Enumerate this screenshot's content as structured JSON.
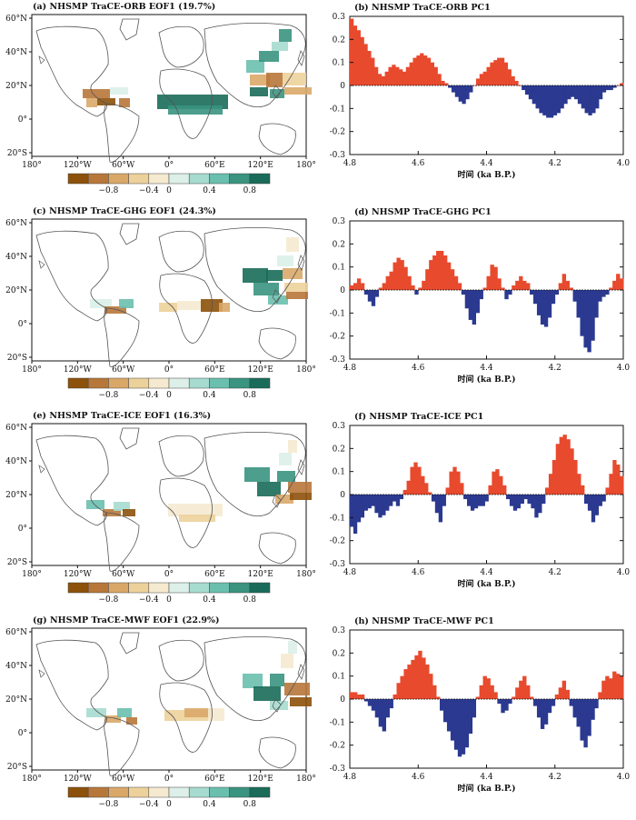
{
  "maps": [
    {
      "title": "(a) NHSMP TraCE-ORB EOF1 (19.7%)"
    },
    {
      "title": "(c) NHSMP TraCE-GHG EOF1 (24.3%)"
    },
    {
      "title": "(e) NHSMP TraCE-ICE EOF1 (16.3%)"
    },
    {
      "title": "(g) NHSMP TraCE-MWF EOF1 (22.9%)"
    }
  ],
  "map_axes": {
    "lat_labels": [
      "60°N",
      "40°N",
      "20°N",
      "0°",
      "20°S"
    ],
    "lon_labels": [
      "180°",
      "120°W",
      "60°W",
      "0°",
      "60°E",
      "120°E",
      "180°"
    ]
  },
  "colorbar": {
    "tick_labels": [
      "−0.8",
      "−0.4",
      "0",
      "0.4",
      "0.8"
    ],
    "colors": [
      "#8c510a",
      "#b8773a",
      "#d9a868",
      "#edd19b",
      "#f5ead0",
      "#dcefe9",
      "#a6dbcf",
      "#6abfae",
      "#3a947f",
      "#1a6b59"
    ]
  },
  "colors": {
    "positive": "#e84a2e",
    "negative": "#2b3990",
    "ocean": "#ffffff",
    "coast": "#555555"
  },
  "chart_data": [
    {
      "type": "bar",
      "title": "(b) NHSMP TraCE-ORB PC1",
      "xlabel": "时间 (ka B.P.)",
      "xlim": [
        4.8,
        4.0
      ],
      "ylim": [
        -0.3,
        0.3
      ],
      "xticks": [
        "4.8",
        "4.6",
        "4.4",
        "4.2",
        "4.0"
      ],
      "yticks": [
        "0.3",
        "0.2",
        "0.1",
        "0",
        "-0.1",
        "-0.2",
        "-0.3"
      ],
      "values": [
        0.29,
        0.26,
        0.24,
        0.21,
        0.18,
        0.15,
        0.12,
        0.08,
        0.05,
        0.04,
        0.06,
        0.08,
        0.09,
        0.08,
        0.07,
        0.06,
        0.08,
        0.1,
        0.12,
        0.13,
        0.14,
        0.13,
        0.12,
        0.1,
        0.08,
        0.05,
        0.02,
        0.01,
        -0.01,
        -0.03,
        -0.05,
        -0.07,
        -0.08,
        -0.06,
        -0.03,
        0,
        0.03,
        0.05,
        0.06,
        0.08,
        0.1,
        0.11,
        0.12,
        0.12,
        0.1,
        0.07,
        0.04,
        0.02,
        0,
        -0.02,
        -0.04,
        -0.06,
        -0.08,
        -0.1,
        -0.12,
        -0.13,
        -0.14,
        -0.14,
        -0.13,
        -0.12,
        -0.1,
        -0.08,
        -0.06,
        -0.05,
        -0.06,
        -0.08,
        -0.1,
        -0.12,
        -0.13,
        -0.12,
        -0.1,
        -0.06,
        -0.03,
        -0.02,
        -0.02,
        -0.01,
        0,
        0.01
      ]
    },
    {
      "type": "bar",
      "title": "(d) NHSMP TraCE-GHG PC1",
      "xlabel": "时间 (ka B.P.)",
      "xlim": [
        4.8,
        4.0
      ],
      "ylim": [
        -0.3,
        0.3
      ],
      "xticks": [
        "4.8",
        "4.6",
        "4.4",
        "4.2",
        "4.0"
      ],
      "yticks": [
        "0.3",
        "0.2",
        "0.1",
        "0",
        "-0.1",
        "-0.2",
        "-0.3"
      ],
      "values": [
        0.02,
        0.03,
        0.05,
        0.03,
        -0.02,
        -0.05,
        -0.07,
        -0.03,
        0.01,
        0.03,
        0.06,
        0.08,
        0.12,
        0.14,
        0.13,
        0.1,
        0.06,
        0.02,
        -0.02,
        0.01,
        0.04,
        0.09,
        0.13,
        0.15,
        0.17,
        0.17,
        0.15,
        0.12,
        0.09,
        0.06,
        0.03,
        -0.02,
        -0.08,
        -0.13,
        -0.15,
        -0.1,
        -0.04,
        0.01,
        0.06,
        0.11,
        0.1,
        0.05,
        0.01,
        -0.04,
        -0.02,
        0.02,
        0.04,
        0.06,
        0.04,
        0.03,
        -0.02,
        -0.06,
        -0.11,
        -0.15,
        -0.16,
        -0.12,
        -0.06,
        -0.02,
        0.03,
        0.07,
        0.04,
        0.01,
        -0.05,
        -0.12,
        -0.2,
        -0.25,
        -0.27,
        -0.22,
        -0.12,
        -0.05,
        -0.03,
        -0.02,
        0.01,
        0.04,
        0.07,
        0.05
      ]
    },
    {
      "type": "bar",
      "title": "(f) NHSMP TraCE-ICE PC1",
      "xlabel": "时间 (ka B.P.)",
      "xlim": [
        4.8,
        4.0
      ],
      "ylim": [
        -0.3,
        0.3
      ],
      "xticks": [
        "4.8",
        "4.6",
        "4.4",
        "4.2",
        "4.0"
      ],
      "yticks": [
        "0.3",
        "0.2",
        "0.1",
        "0",
        "-0.1",
        "-0.2",
        "-0.3"
      ],
      "values": [
        -0.14,
        -0.17,
        -0.12,
        -0.1,
        -0.07,
        -0.06,
        -0.05,
        -0.08,
        -0.1,
        -0.09,
        -0.07,
        -0.05,
        -0.03,
        -0.05,
        -0.02,
        0.02,
        0.06,
        0.12,
        0.14,
        0.12,
        0.08,
        0.05,
        0.01,
        -0.03,
        -0.08,
        -0.12,
        -0.05,
        0.03,
        0.1,
        0.12,
        0.1,
        0.05,
        -0.02,
        -0.05,
        -0.07,
        -0.06,
        -0.05,
        -0.05,
        -0.03,
        0.04,
        0.1,
        0.11,
        0.08,
        0.04,
        -0.02,
        -0.05,
        -0.07,
        -0.06,
        -0.04,
        -0.02,
        -0.04,
        -0.06,
        -0.1,
        -0.08,
        -0.04,
        0.03,
        0.09,
        0.15,
        0.22,
        0.25,
        0.26,
        0.24,
        0.2,
        0.15,
        0.09,
        0.04,
        -0.04,
        -0.07,
        -0.12,
        -0.09,
        -0.05,
        -0.03,
        0.03,
        0.09,
        0.15,
        0.13,
        0.08
      ]
    },
    {
      "type": "bar",
      "title": "(h) NHSMP TraCE-MWF PC1",
      "xlabel": "时间 (ka B.P.)",
      "xlim": [
        4.8,
        4.0
      ],
      "ylim": [
        -0.3,
        0.3
      ],
      "xticks": [
        "4.8",
        "4.6",
        "4.4",
        "4.2",
        "4.0"
      ],
      "yticks": [
        "0.3",
        "0.2",
        "0.1",
        "0",
        "-0.1",
        "-0.2",
        "-0.3"
      ],
      "values": [
        0.03,
        0.03,
        0.02,
        0.02,
        -0.01,
        -0.03,
        -0.05,
        -0.08,
        -0.12,
        -0.14,
        -0.08,
        -0.04,
        0.02,
        0.07,
        0.1,
        0.13,
        0.15,
        0.17,
        0.19,
        0.21,
        0.18,
        0.15,
        0.11,
        0.06,
        0.01,
        -0.05,
        -0.1,
        -0.14,
        -0.18,
        -0.22,
        -0.25,
        -0.24,
        -0.21,
        -0.15,
        -0.08,
        0.01,
        0.06,
        0.1,
        0.09,
        0.06,
        0.03,
        -0.02,
        -0.06,
        -0.05,
        -0.02,
        0.01,
        0.05,
        0.08,
        0.1,
        0.06,
        0.01,
        -0.03,
        -0.08,
        -0.13,
        -0.11,
        -0.06,
        -0.03,
        0.02,
        0.05,
        0.08,
        0.04,
        -0.03,
        -0.08,
        -0.12,
        -0.18,
        -0.21,
        -0.16,
        -0.09,
        -0.04,
        0.03,
        0.08,
        0.1,
        0.09,
        0.12,
        0.11,
        0.1
      ]
    }
  ]
}
